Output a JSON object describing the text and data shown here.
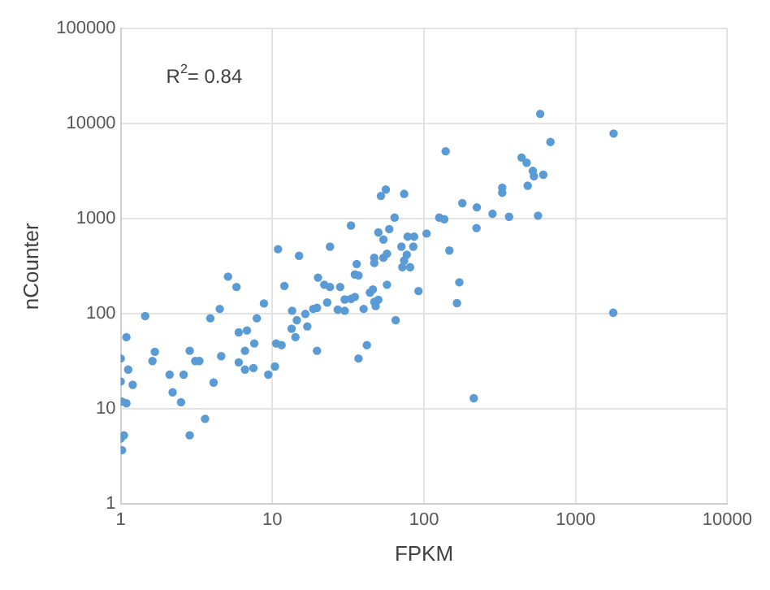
{
  "chart_data": {
    "type": "scatter",
    "xlabel": "FPKM",
    "ylabel": "nCounter",
    "annotations": [
      "R$^{2}$= 0.84"
    ],
    "log": "xy",
    "grid": true,
    "legend": false,
    "marker": "circle",
    "xlim": [
      1,
      10000
    ],
    "xticks": [
      1,
      10,
      100,
      1000,
      10000
    ],
    "ylim": [
      1,
      100000
    ],
    "yticks": [
      1,
      10,
      100,
      1000,
      10000,
      100000
    ],
    "series": [
      {
        "color": "#5b9bd5",
        "x": [
          5.1,
          5.8,
          1.45,
          4.5,
          3.9,
          8.8,
          7.9,
          12,
          15,
          20,
          13.5,
          16.5,
          14.5,
          18.6,
          19.7,
          17,
          13.4,
          14.2,
          1.09,
          6.0,
          6.8,
          7.6,
          10.6,
          11.5,
          19.7,
          1.0,
          1.68,
          1.62,
          2.85,
          3.1,
          3.3,
          4.6,
          6.6,
          6.0,
          6.6,
          7.5,
          10.4,
          9.4,
          1.12,
          2.1,
          2.6,
          4.1,
          1.0,
          1.2,
          2.2,
          1.02,
          1.09,
          2.5,
          3.6,
          1.0,
          1.05,
          2.85,
          1.02,
          52,
          56,
          74,
          33,
          64,
          50,
          59,
          54,
          126,
          136,
          179,
          223,
          222,
          78,
          86,
          104,
          71,
          85,
          147,
          24,
          10.9,
          77,
          57,
          54,
          47,
          47,
          74,
          72,
          81,
          36,
          35,
          37,
          22,
          24,
          28,
          46,
          44,
          57,
          92,
          171,
          165,
          33,
          30,
          35,
          50,
          47,
          48,
          23,
          27,
          30,
          40,
          65,
          42,
          37,
          213,
          584,
          1780,
          682,
          139,
          440,
          475,
          522,
          531,
          612,
          483,
          328,
          328,
          283,
          364,
          565,
          1770
        ],
        "values": [
          247,
          192,
          95,
          113,
          90,
          129,
          90,
          197,
          409,
          241,
          108,
          100,
          86,
          113,
          116,
          74,
          70,
          57,
          57,
          64,
          67,
          49,
          49,
          47,
          41,
          34,
          40,
          32,
          41,
          32,
          32,
          36,
          41,
          31,
          26,
          27,
          28,
          23,
          26,
          23,
          23,
          19,
          19.5,
          18,
          15,
          12,
          11.5,
          11.8,
          7.9,
          4.9,
          5.3,
          5.3,
          3.7,
          1740,
          2030,
          1830,
          850,
          1030,
          720,
          780,
          605,
          1030,
          990,
          1460,
          1320,
          800,
          650,
          650,
          700,
          510,
          510,
          465,
          510,
          480,
          420,
          430,
          390,
          390,
          344,
          365,
          310,
          310,
          335,
          260,
          254,
          203,
          192,
          192,
          181,
          168,
          203,
          174,
          215,
          130,
          144,
          142,
          151,
          141,
          134,
          121,
          132,
          111,
          108,
          113,
          86,
          47,
          34,
          13,
          12700,
          7880,
          6430,
          5130,
          4410,
          3890,
          3190,
          2800,
          2910,
          2230,
          2130,
          1880,
          1130,
          1050,
          1080,
          103
        ]
      }
    ]
  }
}
